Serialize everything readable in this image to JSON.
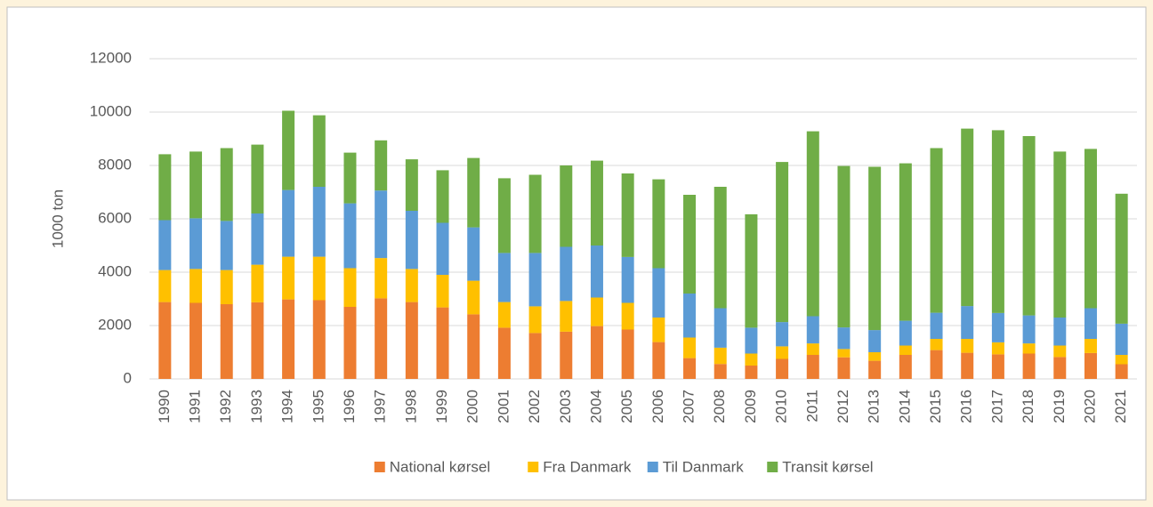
{
  "chart_data": {
    "type": "stacked_bar",
    "y_label": "1000 ton",
    "categories": [
      "1990",
      "1991",
      "1992",
      "1993",
      "1994",
      "1995",
      "1996",
      "1997",
      "1998",
      "1999",
      "2000",
      "2001",
      "2002",
      "2003",
      "2004",
      "2005",
      "2006",
      "2007",
      "2008",
      "2009",
      "2010",
      "2011",
      "2012",
      "2013",
      "2014",
      "2015",
      "2016",
      "2017",
      "2018",
      "2019",
      "2020",
      "2021"
    ],
    "series": [
      {
        "name": "National kørsel",
        "color": "#ed7d31",
        "values": [
          2880,
          2850,
          2800,
          2870,
          2980,
          2950,
          2700,
          3020,
          2880,
          2680,
          2420,
          1920,
          1720,
          1770,
          1980,
          1850,
          1380,
          780,
          560,
          500,
          750,
          900,
          810,
          680,
          900,
          1080,
          980,
          920,
          950,
          820,
          970,
          550
        ]
      },
      {
        "name": "Fra Danmark",
        "color": "#ffc000",
        "values": [
          1200,
          1270,
          1280,
          1410,
          1600,
          1630,
          1450,
          1510,
          1240,
          1220,
          1260,
          960,
          1000,
          1150,
          1070,
          1000,
          920,
          770,
          610,
          450,
          470,
          430,
          310,
          320,
          350,
          420,
          520,
          450,
          380,
          430,
          530,
          350
        ]
      },
      {
        "name": "Til Danmark",
        "color": "#5b9bd5",
        "values": [
          1870,
          1900,
          1840,
          1920,
          2500,
          2620,
          2430,
          2530,
          2180,
          1950,
          2000,
          1840,
          2000,
          2030,
          1950,
          1720,
          1850,
          1650,
          1480,
          970,
          910,
          1020,
          810,
          830,
          930,
          980,
          1230,
          1100,
          1050,
          1050,
          1150,
          1170
        ]
      },
      {
        "name": "Transit kørsel",
        "color": "#70ad47",
        "values": [
          2470,
          2500,
          2730,
          2580,
          2970,
          2680,
          1900,
          1880,
          1930,
          1970,
          2600,
          2800,
          2930,
          3050,
          3180,
          3130,
          3330,
          3700,
          4550,
          4250,
          6000,
          6930,
          6050,
          6120,
          5900,
          6170,
          6650,
          6850,
          6720,
          6220,
          5970,
          4870
        ]
      }
    ],
    "ylim": [
      0,
      12000
    ],
    "yticks": [
      0,
      2000,
      4000,
      6000,
      8000,
      10000,
      12000
    ],
    "grid": true,
    "legend": "bottom"
  }
}
